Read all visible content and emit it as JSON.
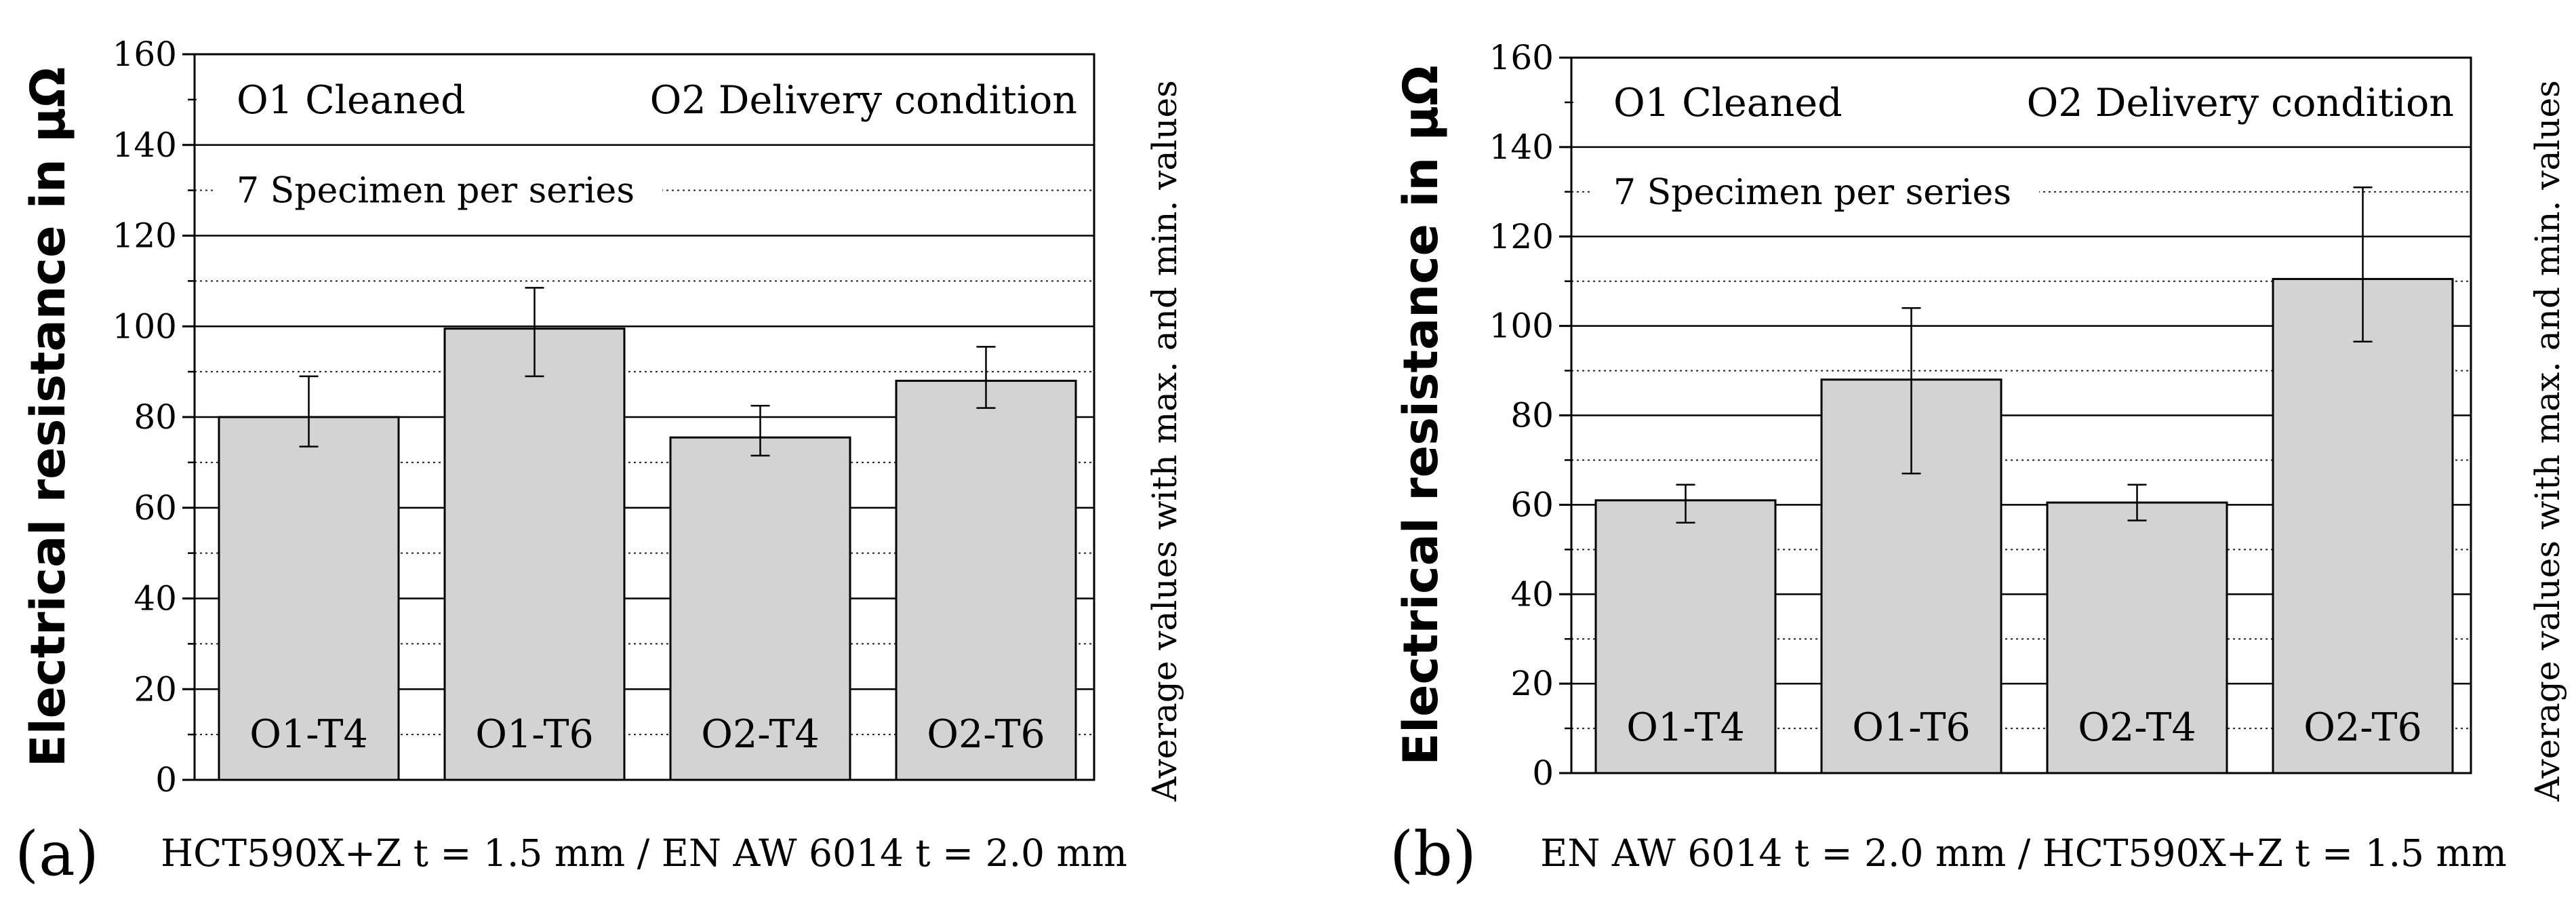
{
  "chart_data": [
    {
      "type": "bar",
      "panel_label": "(a)",
      "categories": [
        "O1-T4",
        "O1-T6",
        "O2-T4",
        "O2-T6"
      ],
      "series": [
        {
          "name": "Electrical resistance",
          "values": [
            80,
            99.5,
            75.5,
            88
          ],
          "min": [
            73.5,
            89,
            71.5,
            82
          ],
          "max": [
            89,
            108.5,
            82.5,
            95.5
          ]
        }
      ],
      "ylim": [
        0,
        160
      ],
      "yticks": [
        "0",
        "20",
        "40",
        "60",
        "80",
        "100",
        "120",
        "140",
        "160"
      ],
      "ylabel": "Electrical resistance in μΩ",
      "right_label": "Average values with max. and min. values",
      "xlabel": "HCT590X+Z t = 1.5 mm / EN AW 6014 t = 2.0 mm",
      "legend_left": "O1 Cleaned",
      "legend_right": "O2 Delivery condition",
      "note": "7 Specimen per series",
      "bar_color": "#d3d3d3"
    },
    {
      "type": "bar",
      "panel_label": "(b)",
      "categories": [
        "O1-T4",
        "O1-T6",
        "O2-T4",
        "O2-T6"
      ],
      "series": [
        {
          "name": "Electrical resistance",
          "values": [
            61,
            88,
            60.5,
            110.5
          ],
          "min": [
            56,
            67,
            56.5,
            96.5
          ],
          "max": [
            64.5,
            104,
            64.5,
            131
          ]
        }
      ],
      "ylim": [
        0,
        160
      ],
      "yticks": [
        "0",
        "20",
        "40",
        "60",
        "80",
        "100",
        "120",
        "140",
        "160"
      ],
      "ylabel": "Electrical resistance in μΩ",
      "right_label": "Average values with max. and min. values",
      "xlabel": "EN AW 6014 t = 2.0 mm / HCT590X+Z t = 1.5 mm",
      "legend_left": "O1 Cleaned",
      "legend_right": "O2 Delivery condition",
      "note": "7 Specimen per series",
      "bar_color": "#d3d3d3"
    }
  ]
}
